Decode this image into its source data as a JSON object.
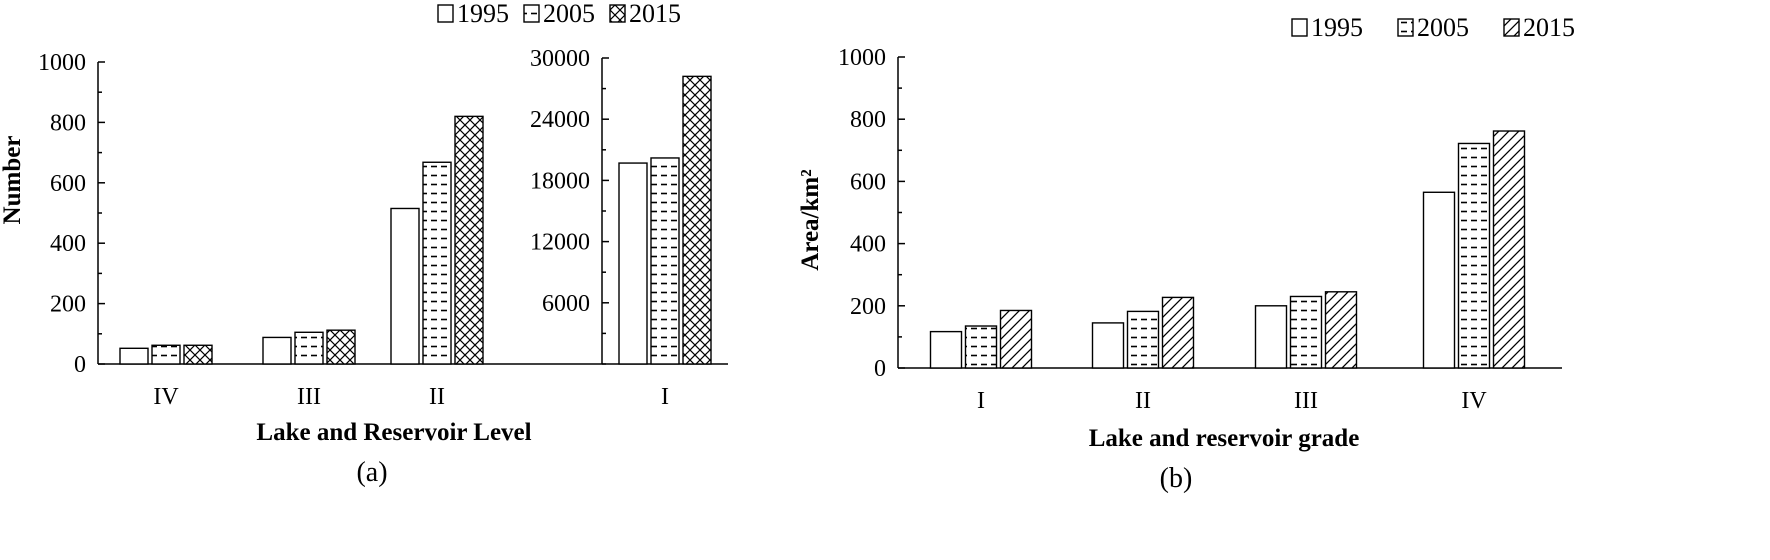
{
  "colors": {
    "bar_stroke": "#000000",
    "bar_fill": "#ffffff",
    "background": "#ffffff"
  },
  "chart_data": [
    {
      "type": "bar",
      "caption": "(a)",
      "xlabel": "Lake and Reservoir Level",
      "ylabel": "Number",
      "legend": {
        "placement": "top-right",
        "entries": [
          "1995",
          "2005",
          "2015"
        ]
      },
      "series_patterns": [
        "blank",
        "dashes",
        "crosshatch"
      ],
      "grid": false,
      "panels": [
        {
          "axis": "left",
          "categories": [
            "IV",
            "III",
            "II"
          ],
          "ylim": [
            0,
            1000
          ],
          "yticks": [
            "0",
            "200",
            "400",
            "600",
            "800",
            "1000"
          ],
          "series": [
            {
              "name": "1995",
              "values": [
                52,
                88,
                515
              ]
            },
            {
              "name": "2005",
              "values": [
                62,
                105,
                668
              ]
            },
            {
              "name": "2015",
              "values": [
                62,
                112,
                820
              ]
            }
          ]
        },
        {
          "axis": "right",
          "categories": [
            "I"
          ],
          "ylim": [
            0,
            30000
          ],
          "yticks": [
            "6000",
            "12000",
            "18000",
            "24000",
            "30000"
          ],
          "series": [
            {
              "name": "1995",
              "values": [
                19700
              ]
            },
            {
              "name": "2005",
              "values": [
                20200
              ]
            },
            {
              "name": "2015",
              "values": [
                28200
              ]
            }
          ]
        }
      ]
    },
    {
      "type": "bar",
      "caption": "(b)",
      "xlabel": "Lake and reservoir grade",
      "ylabel": "Area/km²",
      "legend": {
        "placement": "top-right",
        "entries": [
          "1995",
          "2005",
          "2015"
        ]
      },
      "series_patterns": [
        "blank",
        "dashes",
        "diagonal"
      ],
      "grid": false,
      "categories": [
        "I",
        "II",
        "III",
        "IV"
      ],
      "ylim": [
        0,
        1000
      ],
      "yticks": [
        "0",
        "200",
        "400",
        "600",
        "800",
        "1000"
      ],
      "series": [
        {
          "name": "1995",
          "values": [
            117,
            145,
            200,
            565
          ]
        },
        {
          "name": "2005",
          "values": [
            135,
            182,
            230,
            722
          ]
        },
        {
          "name": "2015",
          "values": [
            185,
            227,
            245,
            762
          ]
        }
      ]
    }
  ]
}
